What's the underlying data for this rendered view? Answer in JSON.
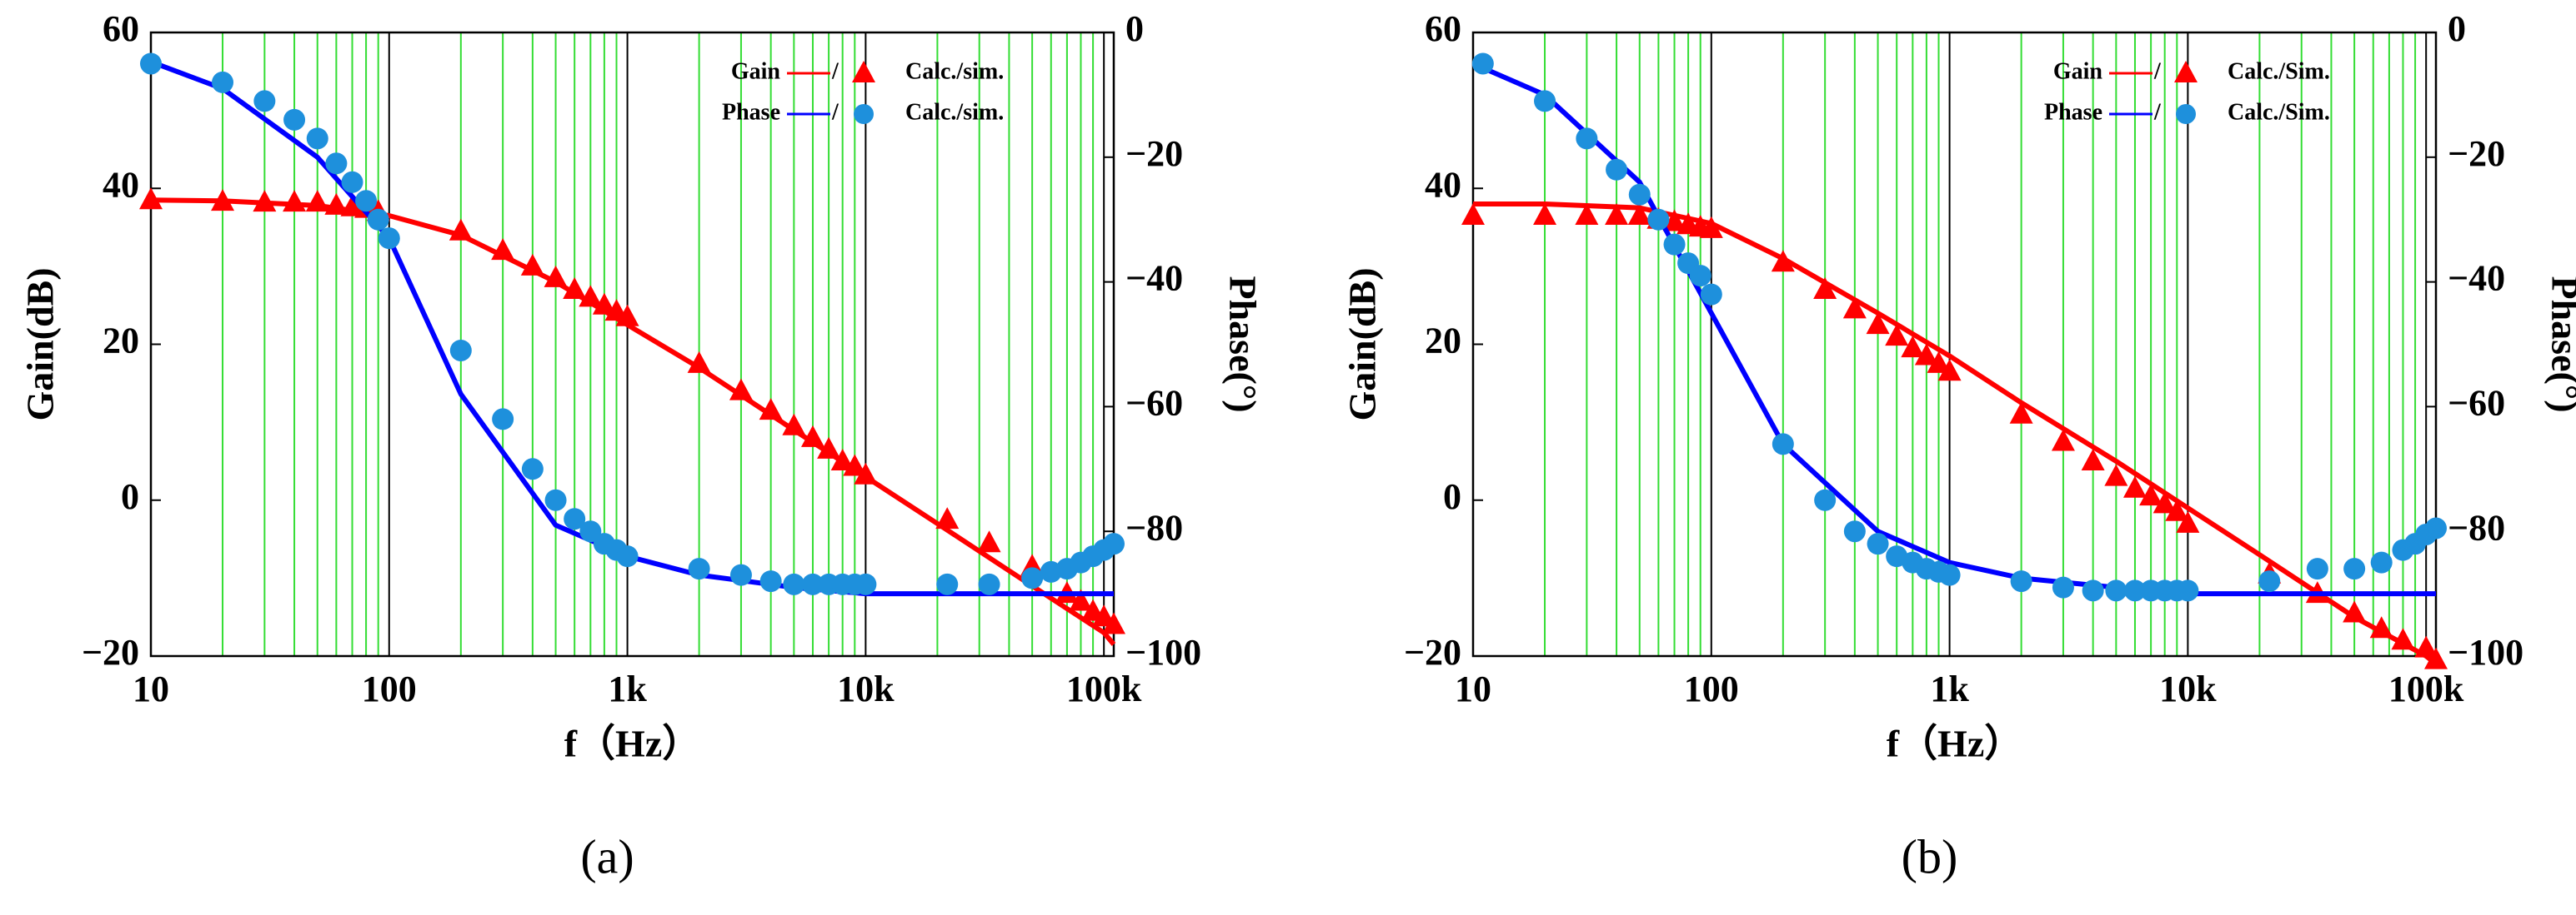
{
  "chart_data": [
    {
      "type": "line",
      "caption": "(a)",
      "xlabel": "f（Hz）",
      "ylabel": "Gain(dB)",
      "y2label": "Phase(°)",
      "xscale": "log",
      "xlim": [
        10,
        110000
      ],
      "xticks": [
        {
          "value": 10,
          "label": "10"
        },
        {
          "value": 100,
          "label": "100"
        },
        {
          "value": 1000,
          "label": "1k"
        },
        {
          "value": 10000,
          "label": "10k"
        },
        {
          "value": 100000,
          "label": "100k"
        }
      ],
      "ylim": [
        -20,
        60
      ],
      "yticks": [
        60,
        40,
        20,
        0,
        {
          "value": -20,
          "label": "−20"
        }
      ],
      "y2lim": [
        -100,
        0
      ],
      "y2ticks": [
        0,
        {
          "value": -20,
          "label": "−20"
        },
        {
          "value": -40,
          "label": "−40"
        },
        {
          "value": -60,
          "label": "−60"
        },
        {
          "value": -80,
          "label": "−80"
        },
        {
          "value": -100,
          "label": "−100"
        }
      ],
      "minor_grid": true,
      "minor_grid_color": "#33dd33",
      "legend_separator": "/",
      "series": [
        {
          "name": "Gain",
          "color": "#ff0000",
          "mark": "line",
          "x": [
            10,
            20,
            50,
            100,
            200,
            500,
            1000,
            2000,
            5000,
            10000,
            20000,
            50000,
            100000,
            110000
          ],
          "values": [
            38.5,
            38.4,
            37.8,
            36.5,
            34,
            28,
            22.5,
            17,
            9,
            3,
            -3,
            -11,
            -17,
            -18.5
          ]
        },
        {
          "name": "Calc./sim.",
          "color": "#ff0000",
          "mark": "triangle",
          "x": [
            10,
            20,
            30,
            40,
            50,
            60,
            70,
            80,
            90,
            200,
            300,
            400,
            500,
            600,
            700,
            800,
            900,
            1000,
            2000,
            3000,
            4000,
            5000,
            6000,
            7000,
            8000,
            9000,
            10000,
            22000,
            33000,
            50000,
            70000,
            80000,
            90000,
            100000,
            110000
          ],
          "values": [
            38.5,
            38.3,
            38.2,
            38.2,
            38.2,
            37.8,
            37.6,
            37.4,
            37,
            34.5,
            32,
            30,
            28.5,
            27,
            26,
            25,
            24.2,
            23.5,
            17.5,
            14,
            11.5,
            9.5,
            8,
            6.5,
            5,
            4.3,
            3.2,
            -2.5,
            -5.5,
            -8.5,
            -12,
            -13,
            -14.3,
            -15,
            -16
          ]
        },
        {
          "name": "Phase",
          "color": "#0000ff",
          "mark": "line",
          "axis": "y2",
          "x": [
            10,
            20,
            50,
            100,
            200,
            500,
            1000,
            2000,
            5000,
            10000,
            20000,
            50000,
            100000,
            110000
          ],
          "values": [
            -4.7,
            -9,
            -20,
            -33,
            -58,
            -79,
            -84,
            -87,
            -89,
            -90,
            -90,
            -90,
            -90,
            -90
          ]
        },
        {
          "name": "Calc./sim.",
          "color": "#1e90dc",
          "mark": "circle",
          "axis": "y2",
          "x": [
            10,
            20,
            30,
            40,
            50,
            60,
            70,
            80,
            90,
            100,
            200,
            300,
            400,
            500,
            600,
            700,
            800,
            900,
            1000,
            2000,
            3000,
            4000,
            5000,
            6000,
            7000,
            8000,
            9000,
            10000,
            22000,
            33000,
            50000,
            60000,
            70000,
            80000,
            90000,
            100000,
            110000
          ],
          "values": [
            -5,
            -8,
            -11,
            -14,
            -17,
            -21,
            -24,
            -27,
            -30,
            -33,
            -51,
            -62,
            -70,
            -75,
            -78,
            -80,
            -82,
            -83,
            -84,
            -86,
            -87,
            -88,
            -88.5,
            -88.5,
            -88.5,
            -88.5,
            -88.5,
            -88.5,
            -88.5,
            -88.5,
            -87.5,
            -86.5,
            -86,
            -85,
            -84,
            -83,
            -82
          ]
        }
      ]
    },
    {
      "type": "line",
      "caption": "(b)",
      "xlabel": "f（Hz）",
      "ylabel": "Gain(dB)",
      "y2label": "Phase(°)",
      "xscale": "log",
      "xlim": [
        10,
        110000
      ],
      "xticks": [
        {
          "value": 10,
          "label": "10"
        },
        {
          "value": 100,
          "label": "100"
        },
        {
          "value": 1000,
          "label": "1k"
        },
        {
          "value": 10000,
          "label": "10k"
        },
        {
          "value": 100000,
          "label": "100k"
        }
      ],
      "ylim": [
        -20,
        60
      ],
      "yticks": [
        60,
        40,
        20,
        0,
        {
          "value": -20,
          "label": "−20"
        }
      ],
      "y2lim": [
        -100,
        0
      ],
      "y2ticks": [
        0,
        {
          "value": -20,
          "label": "−20"
        },
        {
          "value": -40,
          "label": "−40"
        },
        {
          "value": -60,
          "label": "−60"
        },
        {
          "value": -80,
          "label": "−80"
        },
        {
          "value": -100,
          "label": "−100"
        }
      ],
      "minor_grid": true,
      "minor_grid_color": "#33dd33",
      "legend_separator": "/",
      "series": [
        {
          "name": "Gain",
          "color": "#ff0000",
          "mark": "line",
          "x": [
            10,
            20,
            50,
            100,
            200,
            500,
            1000,
            2000,
            5000,
            10000,
            20000,
            50000,
            100000,
            110000
          ],
          "values": [
            38,
            38,
            37.5,
            35.5,
            31,
            24,
            18.5,
            12.5,
            5,
            -1,
            -7,
            -15,
            -20,
            -21
          ]
        },
        {
          "name": "Calc./Sim.",
          "color": "#ff0000",
          "mark": "triangle",
          "x": [
            10,
            20,
            30,
            40,
            50,
            60,
            70,
            80,
            90,
            100,
            200,
            300,
            400,
            500,
            600,
            700,
            800,
            900,
            1000,
            2000,
            3000,
            4000,
            5000,
            6000,
            7000,
            8000,
            9000,
            10000,
            22000,
            35000,
            50000,
            65000,
            80000,
            100000,
            110000
          ],
          "values": [
            36.5,
            36.5,
            36.5,
            36.5,
            36.5,
            36,
            35.7,
            35.3,
            35,
            34.8,
            30.5,
            27,
            24.5,
            22.5,
            21,
            19.5,
            18.5,
            17.5,
            16.5,
            11,
            7.5,
            5,
            3,
            1.5,
            0.5,
            -0.5,
            -1.5,
            -3,
            -9.5,
            -12,
            -14.5,
            -16.5,
            -18,
            -19,
            -20.5
          ]
        },
        {
          "name": "Phase",
          "color": "#0000ff",
          "mark": "line",
          "axis": "y2",
          "x": [
            10,
            20,
            50,
            100,
            200,
            500,
            1000,
            2000,
            5000,
            10000,
            20000,
            50000,
            100000,
            110000
          ],
          "values": [
            -5,
            -10,
            -24,
            -45,
            -66,
            -80,
            -85,
            -87.5,
            -89,
            -90,
            -90,
            -90,
            -90,
            -90
          ]
        },
        {
          "name": "Calc./Sim.",
          "color": "#1e90dc",
          "mark": "circle",
          "axis": "y2",
          "x": [
            11,
            20,
            30,
            40,
            50,
            60,
            70,
            80,
            90,
            100,
            200,
            300,
            400,
            500,
            600,
            700,
            800,
            900,
            1000,
            2000,
            3000,
            4000,
            5000,
            6000,
            7000,
            8000,
            9000,
            10000,
            22000,
            35000,
            50000,
            65000,
            80000,
            90000,
            100000,
            110000
          ],
          "values": [
            -5,
            -11,
            -17,
            -22,
            -26,
            -30,
            -34,
            -37,
            -39,
            -42,
            -66,
            -75,
            -80,
            -82,
            -84,
            -85,
            -86,
            -86.5,
            -87,
            -88,
            -89,
            -89.5,
            -89.5,
            -89.5,
            -89.5,
            -89.5,
            -89.5,
            -89.5,
            -88,
            -86,
            -86,
            -85,
            -83,
            -82,
            -80.5,
            -79.5
          ]
        }
      ]
    }
  ]
}
